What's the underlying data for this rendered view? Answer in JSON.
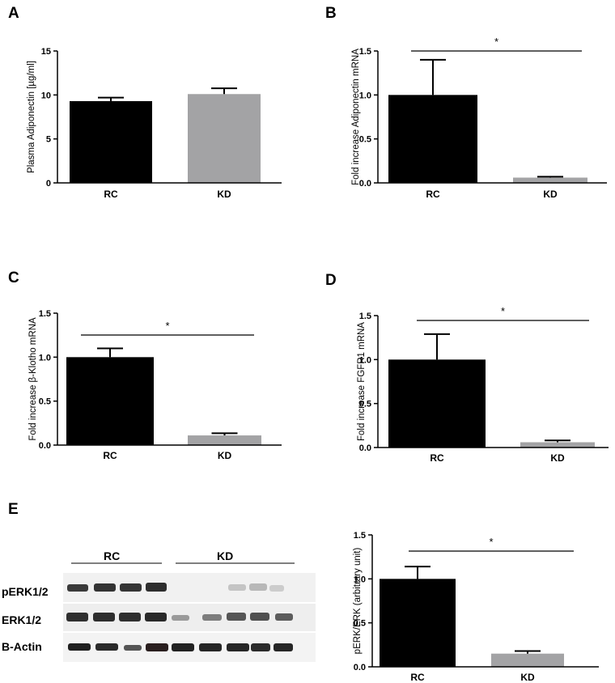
{
  "panel_letters": {
    "A": "A",
    "B": "B",
    "C": "C",
    "D": "D",
    "E": "E"
  },
  "colors": {
    "rc": "#000000",
    "kd": "#a3a3a5",
    "axis": "#000000"
  },
  "chart_data": [
    {
      "type": "bar",
      "panel": "A",
      "ylabel": "Plasma Adiponectin [µg/ml]",
      "categories": [
        "RC",
        "KD"
      ],
      "values": [
        9.3,
        10.1
      ],
      "errors": [
        0.4,
        0.65
      ],
      "ylim": [
        0,
        15
      ],
      "yticks": [
        "0",
        "5",
        "10",
        "15"
      ],
      "significance": ""
    },
    {
      "type": "bar",
      "panel": "B",
      "ylabel": "Fold increase Adiponectin mRNA",
      "categories": [
        "RC",
        "KD"
      ],
      "values": [
        1.0,
        0.06
      ],
      "errors": [
        0.4,
        0.01
      ],
      "ylim": [
        0,
        1.5
      ],
      "yticks": [
        "0.0",
        "0.5",
        "1.0",
        "1.5"
      ],
      "significance": "*"
    },
    {
      "type": "bar",
      "panel": "C",
      "ylabel": "Fold increase β-Klotho mRNA",
      "categories": [
        "RC",
        "KD"
      ],
      "values": [
        1.0,
        0.11
      ],
      "errors": [
        0.1,
        0.025
      ],
      "ylim": [
        0,
        1.5
      ],
      "yticks": [
        "0.0",
        "0.5",
        "1.0",
        "1.5"
      ],
      "significance": "*"
    },
    {
      "type": "bar",
      "panel": "D",
      "ylabel": "Fold increase FGFR1 mRNA",
      "categories": [
        "RC",
        "KD"
      ],
      "values": [
        1.0,
        0.06
      ],
      "errors": [
        0.29,
        0.02
      ],
      "ylim": [
        0,
        1.5
      ],
      "yticks": [
        "0.0",
        "0.5",
        "1.0",
        "1.5"
      ],
      "significance": "*"
    },
    {
      "type": "bar",
      "panel": "E",
      "ylabel": "pERK/ERK (arbitrary unit)",
      "categories": [
        "RC",
        "KD"
      ],
      "values": [
        1.0,
        0.15
      ],
      "errors": [
        0.14,
        0.03
      ],
      "ylim": [
        0,
        1.5
      ],
      "yticks": [
        "0.0",
        "0.5",
        "1.0",
        "1.5"
      ],
      "significance": "*"
    }
  ],
  "blot": {
    "groups": [
      "RC",
      "KD"
    ],
    "rows": [
      "pERK1/2",
      "ERK1/2",
      "B-Actin"
    ]
  }
}
